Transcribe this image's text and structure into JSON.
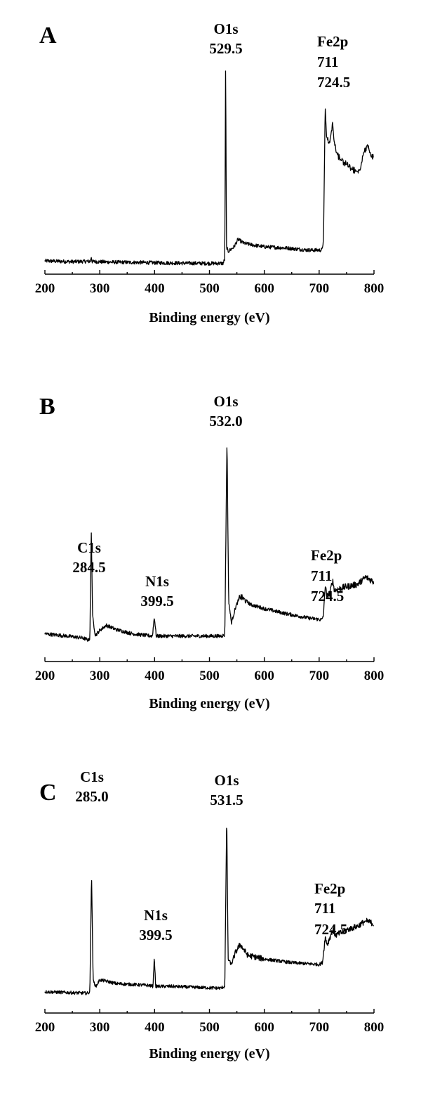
{
  "chart_data": [
    {
      "type": "line",
      "panel": "A",
      "xlabel": "Binding energy (eV)",
      "ylabel": "",
      "xlim": [
        200,
        800
      ],
      "xticks": [
        200,
        300,
        400,
        500,
        600,
        700,
        800
      ],
      "ylim": [
        0,
        100
      ],
      "grid": false,
      "series": [
        {
          "values": [
            [
              200,
              2.0
            ],
            [
              250,
              1.6
            ],
            [
              283,
              1.8
            ],
            [
              284.5,
              4.0
            ],
            [
              286,
              1.7
            ],
            [
              320,
              1.4
            ],
            [
              380,
              1.2
            ],
            [
              450,
              0.9
            ],
            [
              500,
              0.8
            ],
            [
              525,
              0.8
            ],
            [
              528,
              3.0
            ],
            [
              529.5,
              100
            ],
            [
              531,
              9.0
            ],
            [
              534,
              6.5
            ],
            [
              545,
              8.8
            ],
            [
              552,
              12.4
            ],
            [
              562,
              10.6
            ],
            [
              580,
              9.6
            ],
            [
              600,
              8.8
            ],
            [
              640,
              8.2
            ],
            [
              680,
              7.2
            ],
            [
              705,
              7.2
            ],
            [
              708,
              12.0
            ],
            [
              711,
              76.4
            ],
            [
              713.5,
              62.0
            ],
            [
              718,
              58.5
            ],
            [
              721,
              62.0
            ],
            [
              724.5,
              69.0
            ],
            [
              727,
              60.0
            ],
            [
              733,
              53.5
            ],
            [
              740,
              50.5
            ],
            [
              750,
              48.5
            ],
            [
              760,
              46.0
            ],
            [
              770,
              45.2
            ],
            [
              775,
              45.8
            ],
            [
              781,
              54.0
            ],
            [
              788,
              58.0
            ],
            [
              795,
              52.0
            ],
            [
              800,
              52.0
            ]
          ]
        }
      ],
      "annotations": [
        {
          "x": 529.5,
          "lines": [
            "O1s",
            "529.5"
          ]
        },
        {
          "x": 711,
          "lines": [
            "Fe2p",
            "711",
            "724.5"
          ]
        }
      ]
    },
    {
      "type": "line",
      "panel": "B",
      "xlabel": "Binding energy (eV)",
      "ylabel": "",
      "xlim": [
        200,
        800
      ],
      "xticks": [
        200,
        300,
        400,
        500,
        600,
        700,
        800
      ],
      "ylim": [
        0,
        100
      ],
      "grid": false,
      "series": [
        {
          "values": [
            [
              200,
              3.6
            ],
            [
              240,
              2.5
            ],
            [
              270,
              1.5
            ],
            [
              279,
              0.5
            ],
            [
              282,
              1.5
            ],
            [
              284.5,
              55.0
            ],
            [
              287,
              12.0
            ],
            [
              292,
              2.8
            ],
            [
              300,
              5.3
            ],
            [
              312,
              7.8
            ],
            [
              330,
              5.7
            ],
            [
              360,
              3.6
            ],
            [
              385,
              2.8
            ],
            [
              396,
              2.5
            ],
            [
              399.5,
              12.0
            ],
            [
              403,
              2.5
            ],
            [
              430,
              2.5
            ],
            [
              480,
              2.5
            ],
            [
              520,
              2.5
            ],
            [
              528,
              3.0
            ],
            [
              532,
              100
            ],
            [
              535,
              20.0
            ],
            [
              540,
              9.0
            ],
            [
              548,
              17.0
            ],
            [
              556,
              22.0
            ],
            [
              575,
              18.0
            ],
            [
              600,
              16.0
            ],
            [
              640,
              13.5
            ],
            [
              680,
              11.4
            ],
            [
              705,
              10.5
            ],
            [
              708,
              13.0
            ],
            [
              711,
              27.8
            ],
            [
              714,
              22.0
            ],
            [
              720,
              24.0
            ],
            [
              724.5,
              30.0
            ],
            [
              728,
              25.0
            ],
            [
              745,
              26.5
            ],
            [
              770,
              28.0
            ],
            [
              785,
              31.5
            ],
            [
              795,
              30.0
            ],
            [
              800,
              29.0
            ]
          ]
        }
      ],
      "annotations": [
        {
          "x": 284.5,
          "lines": [
            "C1s",
            "284.5"
          ]
        },
        {
          "x": 399.5,
          "lines": [
            "N1s",
            "399.5"
          ]
        },
        {
          "x": 532.0,
          "lines": [
            "O1s",
            "532.0"
          ]
        },
        {
          "x": 711,
          "lines": [
            "Fe2p",
            "711",
            "724.5"
          ]
        }
      ]
    },
    {
      "type": "line",
      "panel": "C",
      "xlabel": "Binding energy (eV)",
      "ylabel": "",
      "xlim": [
        200,
        800
      ],
      "xticks": [
        200,
        300,
        400,
        500,
        600,
        700,
        800
      ],
      "ylim": [
        0,
        100
      ],
      "grid": false,
      "series": [
        {
          "values": [
            [
              200,
              2.0
            ],
            [
              250,
              1.5
            ],
            [
              278,
              1.2
            ],
            [
              282,
              2.0
            ],
            [
              285.0,
              67.0
            ],
            [
              288,
              8.0
            ],
            [
              293,
              5.0
            ],
            [
              300,
              8.5
            ],
            [
              310,
              8.0
            ],
            [
              330,
              6.5
            ],
            [
              360,
              6.0
            ],
            [
              390,
              5.5
            ],
            [
              397,
              5.0
            ],
            [
              399.5,
              21.0
            ],
            [
              402,
              5.0
            ],
            [
              430,
              5.0
            ],
            [
              470,
              4.5
            ],
            [
              520,
              4.0
            ],
            [
              528,
              5.0
            ],
            [
              531.5,
              100
            ],
            [
              534,
              20.0
            ],
            [
              540,
              17.0
            ],
            [
              548,
              24.0
            ],
            [
              556,
              28.0
            ],
            [
              570,
              22.0
            ],
            [
              600,
              20.0
            ],
            [
              650,
              18.0
            ],
            [
              700,
              17.0
            ],
            [
              706,
              18.0
            ],
            [
              711,
              32.0
            ],
            [
              715,
              28.0
            ],
            [
              724.5,
              36.0
            ],
            [
              730,
              33.0
            ],
            [
              750,
              36.0
            ],
            [
              770,
              38.0
            ],
            [
              785,
              41.0
            ],
            [
              795,
              40.0
            ],
            [
              800,
              39.0
            ]
          ]
        }
      ],
      "annotations": [
        {
          "x": 285.0,
          "lines": [
            "C1s",
            "285.0"
          ]
        },
        {
          "x": 399.5,
          "lines": [
            "N1s",
            "399.5"
          ]
        },
        {
          "x": 531.5,
          "lines": [
            "O1s",
            "531.5"
          ]
        },
        {
          "x": 711,
          "lines": [
            "Fe2p",
            "711",
            "724.5"
          ]
        }
      ]
    }
  ]
}
